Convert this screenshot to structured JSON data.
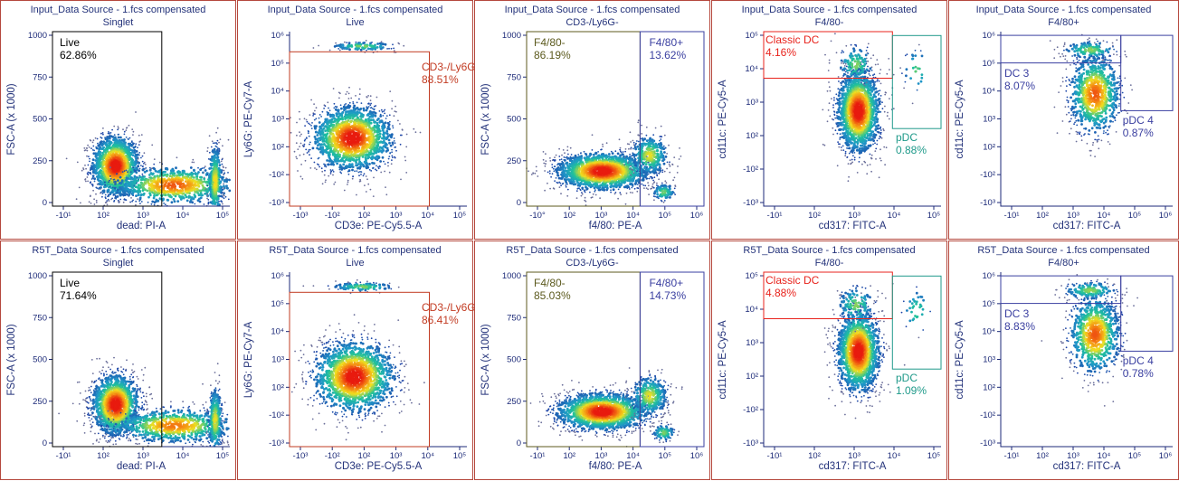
{
  "colors": {
    "panel_border": "#b5483d",
    "title_text": "#23327a",
    "gate_black": "#000000",
    "gate_red": "#c23b22",
    "gate_blue": "#3a3fa0",
    "gate_teal": "#1f9a8a",
    "gate_olive": "#5c5a1e",
    "gate_bright_red": "#e8231c",
    "density_low": "#1b2a9c",
    "density_mid": "#1fc29a",
    "density_high": "#f0e020",
    "density_peak": "#e81b0f"
  },
  "chart_data": [
    {
      "id": "r1c1",
      "type": "scatter",
      "row": "Input",
      "title": "Input_Data Source - 1.fcs compensated",
      "subtitle": "Singlet",
      "xlabel": "dead: PI-A",
      "ylabel": "FSC-A (x 1000)",
      "xscale": "log",
      "yscale": "linear",
      "xlim": [
        -1.3,
        6
      ],
      "ylim": [
        0,
        1000
      ],
      "xticks": [
        "-10¹",
        "10²",
        "10³",
        "10⁴",
        "10⁵"
      ],
      "yticks": [
        "0",
        "250",
        "500",
        "750",
        "1000"
      ],
      "gates": [
        {
          "name": "Live",
          "value": "62.86%",
          "color": "black",
          "x": [
            -1.3,
            3.2
          ],
          "y": [
            0,
            1000
          ]
        }
      ],
      "populations": [
        {
          "x": 1.3,
          "y": 230,
          "sx": 0.5,
          "sy": 90,
          "n": 1400
        },
        {
          "x": 3.7,
          "y": 120,
          "sx": 1.3,
          "sy": 55,
          "n": 900
        },
        {
          "x": 5.4,
          "y": 140,
          "sx": 0.15,
          "sy": 110,
          "n": 400
        }
      ]
    },
    {
      "id": "r1c2",
      "type": "scatter",
      "row": "Input",
      "title": "Input_Data Source - 1.fcs compensated",
      "subtitle": "Live",
      "xlabel": "CD3e: PE-Cy5.5-A",
      "ylabel": "Ly6G: PE-Cy7-A",
      "xscale": "log",
      "yscale": "log",
      "xlim": [
        -3.5,
        5
      ],
      "ylim": [
        -3.5,
        6
      ],
      "xticks": [
        "-10³",
        "-10²",
        "10²",
        "10³",
        "10⁴",
        "10⁵"
      ],
      "yticks": [
        "-10³",
        "-10²",
        "10²",
        "10³",
        "10⁴",
        "10⁵",
        "10⁶"
      ],
      "gates": [
        {
          "name": "CD3-/Ly6G-",
          "value": "88.51%",
          "color": "red",
          "x": [
            -3.5,
            3.2
          ],
          "y": [
            -3.5,
            4.9
          ]
        }
      ],
      "populations": [
        {
          "x": -0.5,
          "y": 0.2,
          "sx": 1.0,
          "sy": 0.9,
          "n": 1700
        },
        {
          "x": 0.0,
          "y": 5.2,
          "sx": 0.8,
          "sy": 0.12,
          "n": 120
        }
      ]
    },
    {
      "id": "r1c3",
      "type": "scatter",
      "row": "Input",
      "title": "Input_Data Source - 1.fcs compensated",
      "subtitle": "CD3-/Ly6G-",
      "xlabel": "f4/80: PE-A",
      "ylabel": "FSC-A (x 1000)",
      "xscale": "log",
      "yscale": "linear",
      "xlim": [
        -1.5,
        6
      ],
      "ylim": [
        0,
        1000
      ],
      "xticks": [
        "-10°",
        "10²",
        "10³",
        "10⁴",
        "10⁵",
        "10⁶"
      ],
      "yticks": [
        "0",
        "250",
        "500",
        "750",
        "1000"
      ],
      "gates": [
        {
          "name": "F4/80-",
          "value": "86.19%",
          "color": "olive",
          "x": [
            -1.5,
            3.3
          ],
          "y": [
            0,
            1000
          ]
        },
        {
          "name": "F4/80+",
          "value": "13.62%",
          "color": "blue",
          "x": [
            3.3,
            6.0
          ],
          "y": [
            0,
            1000
          ]
        }
      ],
      "populations": [
        {
          "x": 1.7,
          "y": 200,
          "sx": 1.0,
          "sy": 55,
          "n": 1700
        },
        {
          "x": 3.7,
          "y": 290,
          "sx": 0.4,
          "sy": 60,
          "n": 350
        },
        {
          "x": 4.3,
          "y": 80,
          "sx": 0.25,
          "sy": 25,
          "n": 100
        }
      ]
    },
    {
      "id": "r1c4",
      "type": "scatter",
      "row": "Input",
      "title": "Input_Data Source - 1.fcs compensated",
      "subtitle": "F4/80-",
      "xlabel": "cd317: FITC-A",
      "ylabel": "cd11c: PE-Cy5-A",
      "xscale": "log",
      "yscale": "log",
      "xlim": [
        -1.3,
        6
      ],
      "ylim": [
        -4,
        5
      ],
      "xticks": [
        "-10¹",
        "10²",
        "10³",
        "10⁴",
        "10⁵"
      ],
      "yticks": [
        "-10³",
        "-10²",
        "10²",
        "10³",
        "10⁴",
        "10⁵"
      ],
      "gates": [
        {
          "name": "Classic DC",
          "value": "4.16%",
          "color": "brightred",
          "x": [
            -1.3,
            4.0
          ],
          "y": [
            2.6,
            5.0
          ]
        },
        {
          "name": "pDC",
          "value": "0.88%",
          "color": "teal",
          "x": [
            4.0,
            6.0
          ],
          "y": [
            0.0,
            4.8
          ]
        }
      ],
      "populations": [
        {
          "x": 2.6,
          "y": 0.9,
          "sx": 0.45,
          "sy": 1.1,
          "n": 1600
        },
        {
          "x": 2.5,
          "y": 3.3,
          "sx": 0.4,
          "sy": 0.5,
          "n": 120
        },
        {
          "x": 5.0,
          "y": 3.0,
          "sx": 0.3,
          "sy": 0.6,
          "n": 30
        }
      ]
    },
    {
      "id": "r1c5",
      "type": "scatter",
      "row": "Input",
      "title": "Input_Data Source - 1.fcs compensated",
      "subtitle": "F4/80+",
      "xlabel": "cd317: FITC-A",
      "ylabel": "cd11c: PE-Cy5-A",
      "xscale": "log",
      "yscale": "log",
      "xlim": [
        -1.3,
        6
      ],
      "ylim": [
        -3.5,
        6
      ],
      "xticks": [
        "-10¹",
        "10²",
        "10³",
        "10⁴",
        "10⁵",
        "10⁶"
      ],
      "yticks": [
        "-10³",
        "-10²",
        "10²",
        "10³",
        "10⁴",
        "10⁵",
        "10⁶"
      ],
      "gates": [
        {
          "name": "DC 3",
          "value": "8.07%",
          "color": "blue",
          "x": [
            -1.3,
            3.8
          ],
          "y": [
            4.3,
            5.8
          ]
        },
        {
          "name": "pDC 4",
          "value": "0.87%",
          "color": "blue",
          "x": [
            3.8,
            6.0
          ],
          "y": [
            1.7,
            5.8
          ]
        }
      ],
      "populations": [
        {
          "x": 2.7,
          "y": 2.6,
          "sx": 0.55,
          "sy": 1.1,
          "n": 900
        },
        {
          "x": 2.5,
          "y": 5.0,
          "sx": 0.6,
          "sy": 0.25,
          "n": 150
        }
      ]
    },
    {
      "id": "r2c1",
      "type": "scatter",
      "row": "R5T",
      "title": "R5T_Data Source - 1.fcs compensated",
      "subtitle": "Singlet",
      "xlabel": "dead: PI-A",
      "ylabel": "FSC-A (x 1000)",
      "xscale": "log",
      "yscale": "linear",
      "xlim": [
        -1.3,
        6
      ],
      "ylim": [
        0,
        1000
      ],
      "xticks": [
        "-10¹",
        "10²",
        "10³",
        "10⁴",
        "10⁵"
      ],
      "yticks": [
        "0",
        "250",
        "500",
        "750",
        "1000"
      ],
      "gates": [
        {
          "name": "Live",
          "value": "71.64%",
          "color": "black",
          "x": [
            -1.3,
            3.2
          ],
          "y": [
            0,
            1000
          ]
        }
      ],
      "populations": [
        {
          "x": 1.3,
          "y": 240,
          "sx": 0.5,
          "sy": 90,
          "n": 1500
        },
        {
          "x": 3.7,
          "y": 120,
          "sx": 1.3,
          "sy": 50,
          "n": 800
        },
        {
          "x": 5.4,
          "y": 150,
          "sx": 0.15,
          "sy": 100,
          "n": 350
        }
      ]
    },
    {
      "id": "r2c2",
      "type": "scatter",
      "row": "R5T",
      "title": "R5T_Data Source - 1.fcs compensated",
      "subtitle": "Live",
      "xlabel": "CD3e: PE-Cy5.5-A",
      "ylabel": "Ly6G: PE-Cy7-A",
      "xscale": "log",
      "yscale": "log",
      "xlim": [
        -3.5,
        5
      ],
      "ylim": [
        -3.5,
        6
      ],
      "xticks": [
        "-10³",
        "-10²",
        "10²",
        "10³",
        "10⁴",
        "10⁵"
      ],
      "yticks": [
        "-10³",
        "-10²",
        "10²",
        "10³",
        "10⁴",
        "10⁵",
        "10⁶"
      ],
      "gates": [
        {
          "name": "CD3-/Ly6G-",
          "value": "86.41%",
          "color": "red",
          "x": [
            -3.5,
            3.2
          ],
          "y": [
            -3.5,
            4.9
          ]
        }
      ],
      "populations": [
        {
          "x": -0.4,
          "y": 0.3,
          "sx": 1.0,
          "sy": 1.0,
          "n": 1700
        },
        {
          "x": 0.0,
          "y": 5.2,
          "sx": 0.8,
          "sy": 0.12,
          "n": 120
        }
      ]
    },
    {
      "id": "r2c3",
      "type": "scatter",
      "row": "R5T",
      "title": "R5T_Data Source - 1.fcs compensated",
      "subtitle": "CD3-/Ly6G-",
      "xlabel": "f4/80: PE-A",
      "ylabel": "FSC-A (x 1000)",
      "xscale": "log",
      "yscale": "linear",
      "xlim": [
        -1.5,
        6
      ],
      "ylim": [
        0,
        1000
      ],
      "xticks": [
        "-10¹",
        "10²",
        "10³",
        "10⁴",
        "10⁵",
        "10⁶"
      ],
      "yticks": [
        "0",
        "250",
        "500",
        "750",
        "1000"
      ],
      "gates": [
        {
          "name": "F4/80-",
          "value": "85.03%",
          "color": "olive",
          "x": [
            -1.5,
            3.3
          ],
          "y": [
            0,
            1000
          ]
        },
        {
          "name": "F4/80+",
          "value": "14.73%",
          "color": "blue",
          "x": [
            3.3,
            6.0
          ],
          "y": [
            0,
            1000
          ]
        }
      ],
      "populations": [
        {
          "x": 1.7,
          "y": 200,
          "sx": 1.0,
          "sy": 55,
          "n": 1700
        },
        {
          "x": 3.7,
          "y": 290,
          "sx": 0.4,
          "sy": 60,
          "n": 350
        },
        {
          "x": 4.3,
          "y": 80,
          "sx": 0.25,
          "sy": 25,
          "n": 100
        }
      ]
    },
    {
      "id": "r2c4",
      "type": "scatter",
      "row": "R5T",
      "title": "R5T_Data Source - 1.fcs compensated",
      "subtitle": "F4/80-",
      "xlabel": "cd317: FITC-A",
      "ylabel": "cd11c: PE-Cy5-A",
      "xscale": "log",
      "yscale": "log",
      "xlim": [
        -1.3,
        6
      ],
      "ylim": [
        -4,
        5
      ],
      "xticks": [
        "-10¹",
        "10²",
        "10³",
        "10⁴",
        "10⁵"
      ],
      "yticks": [
        "-10³",
        "-10²",
        "10²",
        "10³",
        "10⁴",
        "10⁵"
      ],
      "gates": [
        {
          "name": "Classic DC",
          "value": "4.88%",
          "color": "brightred",
          "x": [
            -1.3,
            4.0
          ],
          "y": [
            2.6,
            5.0
          ]
        },
        {
          "name": "pDC",
          "value": "1.09%",
          "color": "teal",
          "x": [
            4.0,
            6.0
          ],
          "y": [
            0.0,
            4.8
          ]
        }
      ],
      "populations": [
        {
          "x": 2.6,
          "y": 0.9,
          "sx": 0.45,
          "sy": 1.1,
          "n": 1600
        },
        {
          "x": 2.5,
          "y": 3.3,
          "sx": 0.4,
          "sy": 0.5,
          "n": 130
        },
        {
          "x": 5.0,
          "y": 3.0,
          "sx": 0.3,
          "sy": 0.6,
          "n": 35
        }
      ]
    },
    {
      "id": "r2c5",
      "type": "scatter",
      "row": "R5T",
      "title": "R5T_Data Source - 1.fcs compensated",
      "subtitle": "F4/80+",
      "xlabel": "cd317: FITC-A",
      "ylabel": "cd11c: PE-Cy5-A",
      "xscale": "log",
      "yscale": "log",
      "xlim": [
        -1.3,
        6
      ],
      "ylim": [
        -3.5,
        6
      ],
      "xticks": [
        "-10¹",
        "10²",
        "10³",
        "10⁴",
        "10⁵",
        "10⁶"
      ],
      "yticks": [
        "-10³",
        "-10²",
        "10²",
        "10³",
        "10⁴",
        "10⁵",
        "10⁶"
      ],
      "gates": [
        {
          "name": "DC 3",
          "value": "8.83%",
          "color": "blue",
          "x": [
            -1.3,
            3.8
          ],
          "y": [
            4.3,
            5.8
          ]
        },
        {
          "name": "pDC 4",
          "value": "0.78%",
          "color": "blue",
          "x": [
            3.8,
            6.0
          ],
          "y": [
            1.7,
            5.8
          ]
        }
      ],
      "populations": [
        {
          "x": 2.7,
          "y": 2.6,
          "sx": 0.55,
          "sy": 1.1,
          "n": 900
        },
        {
          "x": 2.5,
          "y": 5.0,
          "sx": 0.6,
          "sy": 0.25,
          "n": 160
        }
      ]
    }
  ]
}
